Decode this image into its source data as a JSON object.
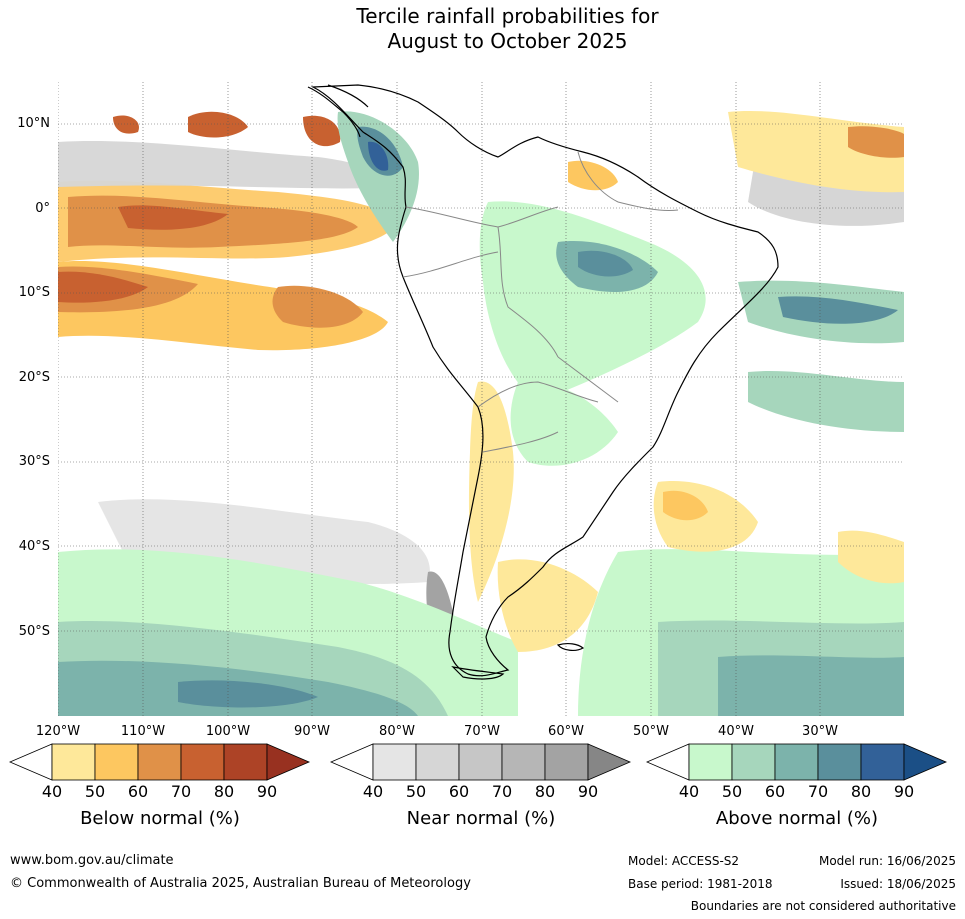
{
  "title_line1": "Tercile rainfall probabilities for",
  "title_line2": "August to October 2025",
  "map": {
    "lat_labels": [
      "10°N",
      "0°",
      "10°S",
      "20°S",
      "30°S",
      "40°S",
      "50°S"
    ],
    "lon_labels": [
      "120°W",
      "110°W",
      "100°W",
      "90°W",
      "80°W",
      "70°W",
      "60°W",
      "50°W",
      "40°W",
      "30°W"
    ],
    "colors": {
      "ocean": "#ffffff",
      "land_outline": "#000000",
      "borders": "#888888"
    }
  },
  "colorbars": [
    {
      "name": "below",
      "title": "Below normal (%)",
      "ticks": [
        "40",
        "50",
        "60",
        "70",
        "80",
        "90"
      ],
      "colors": [
        "#ffffff",
        "#fee89a",
        "#fdc760",
        "#e09148",
        "#c86130",
        "#ad4326",
        "#983120"
      ]
    },
    {
      "name": "near",
      "title": "Near normal (%)",
      "ticks": [
        "40",
        "50",
        "60",
        "70",
        "80",
        "90"
      ],
      "colors": [
        "#ffffff",
        "#e5e5e5",
        "#d6d6d6",
        "#c6c6c6",
        "#b6b6b6",
        "#a3a3a3",
        "#868686"
      ]
    },
    {
      "name": "above",
      "title": "Above normal (%)",
      "ticks": [
        "40",
        "50",
        "60",
        "70",
        "80",
        "90"
      ],
      "colors": [
        "#ffffff",
        "#c8f8cc",
        "#a6d6bc",
        "#7cb3ab",
        "#5a8f9c",
        "#326198",
        "#1b4f86"
      ]
    }
  ],
  "footer": {
    "url": "www.bom.gov.au/climate",
    "copyright": "© Commonwealth of Australia 2025, Australian Bureau of Meteorology",
    "model": "Model: ACCESS-S2",
    "base_period": "Base period: 1981-2018",
    "model_run": "Model run: 16/06/2025",
    "issued": "Issued: 18/06/2025",
    "disclaimer": "Boundaries are not considered authoritative"
  }
}
